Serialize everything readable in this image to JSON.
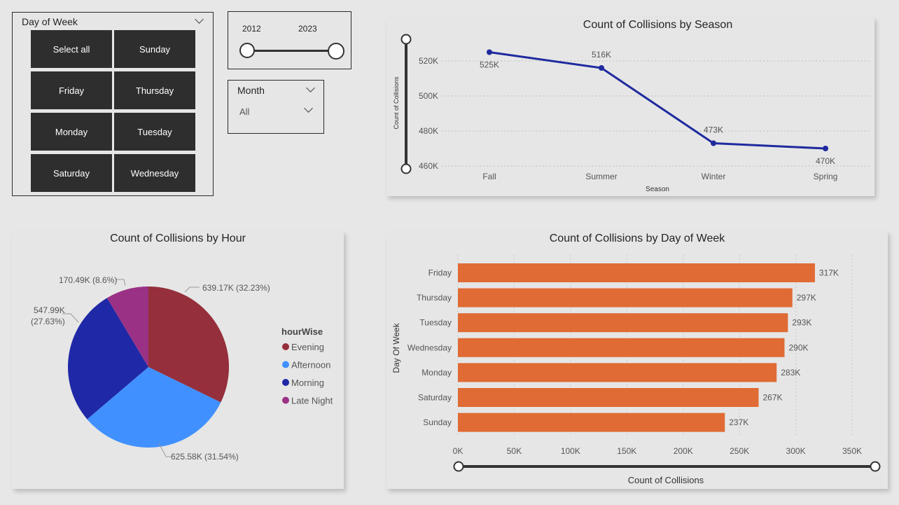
{
  "day_slicer": {
    "title": "Day of Week",
    "tiles": [
      "Select all",
      "Sunday",
      "Friday",
      "Thursday",
      "Monday",
      "Tuesday",
      "Saturday",
      "Wednesday"
    ]
  },
  "year_slider": {
    "min_label": "2012",
    "max_label": "2023"
  },
  "month_slicer": {
    "title": "Month",
    "selected": "All"
  },
  "colors": {
    "line": "#1f2a9e",
    "bar": "#e06b34",
    "evening": "#952f3b",
    "afternoon": "#4190ff",
    "morning": "#1f28a6",
    "late_night": "#9a3185"
  },
  "season_chart": {
    "title": "Count of Collisions by Season",
    "xlabel": "Season",
    "ylabel": "Count of Collisions",
    "yticks": [
      "520K",
      "500K",
      "480K",
      "460K"
    ],
    "labels": [
      "525K",
      "516K",
      "473K",
      "470K"
    ],
    "categories": [
      "Fall",
      "Summer",
      "Winter",
      "Spring"
    ]
  },
  "hour_chart": {
    "title": "Count of Collisions by Hour",
    "legend_title": "hourWise",
    "legend": [
      "Evening",
      "Afternoon",
      "Morning",
      "Late Night"
    ],
    "labels": {
      "evening": "639.17K (32.23%)",
      "afternoon": "625.58K (31.54%)",
      "morning_1": "547.99K",
      "morning_2": "(27.63%)",
      "late_night": "170.49K (8.6%)"
    }
  },
  "day_chart": {
    "title": "Count of Collisions by Day of Week",
    "xlabel": "Count of Collisions",
    "ylabel": "Day Of Week",
    "xticks": [
      "0K",
      "50K",
      "100K",
      "150K",
      "200K",
      "250K",
      "300K",
      "350K"
    ],
    "labels": [
      "317K",
      "297K",
      "293K",
      "290K",
      "283K",
      "267K",
      "237K"
    ]
  },
  "chart_data": [
    {
      "type": "line",
      "title": "Count of Collisions by Season",
      "xlabel": "Season",
      "ylabel": "Count of Collisions",
      "categories": [
        "Fall",
        "Summer",
        "Winter",
        "Spring"
      ],
      "values": [
        525000,
        516000,
        473000,
        470000
      ],
      "ylim": [
        456000,
        530000
      ],
      "grid": true
    },
    {
      "type": "pie",
      "title": "Count of Collisions by Hour",
      "legend_title": "hourWise",
      "categories": [
        "Evening",
        "Afternoon",
        "Morning",
        "Late Night"
      ],
      "values": [
        639170,
        625580,
        547990,
        170490
      ],
      "percents": [
        32.23,
        31.54,
        27.63,
        8.6
      ],
      "legend": "right"
    },
    {
      "type": "bar",
      "orientation": "horizontal",
      "title": "Count of Collisions by Day of Week",
      "xlabel": "Count of Collisions",
      "ylabel": "Day Of Week",
      "categories": [
        "Friday",
        "Thursday",
        "Tuesday",
        "Wednesday",
        "Monday",
        "Saturday",
        "Sunday"
      ],
      "values": [
        317000,
        297000,
        293000,
        290000,
        283000,
        267000,
        237000
      ],
      "xlim": [
        0,
        350000
      ],
      "grid": true
    }
  ]
}
